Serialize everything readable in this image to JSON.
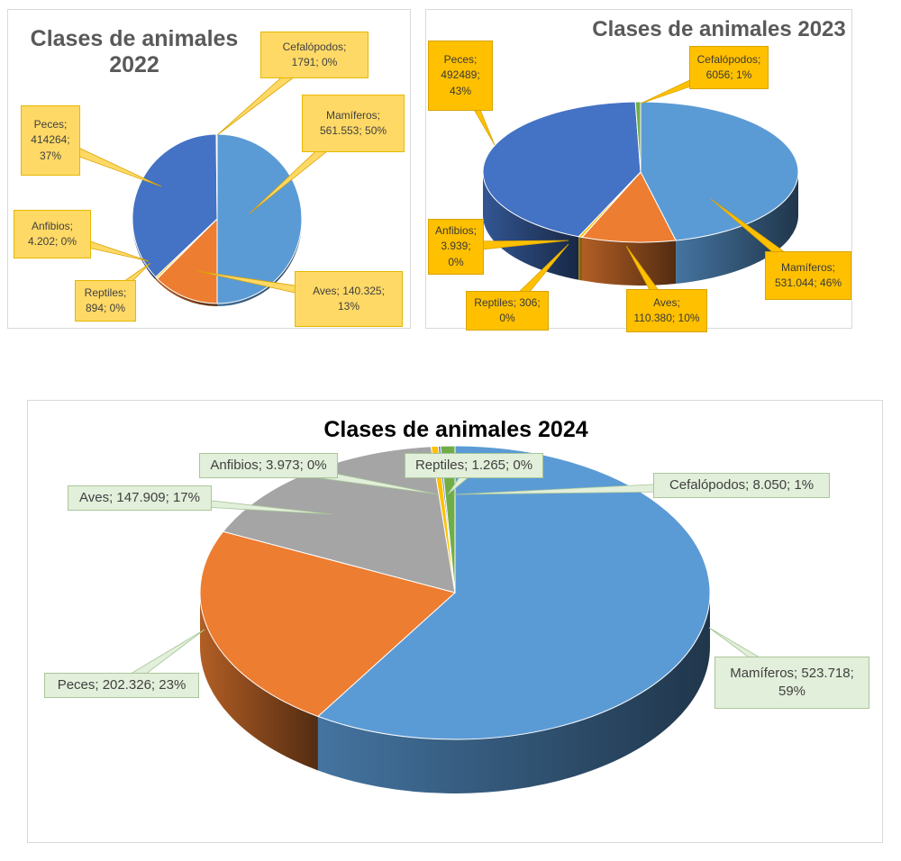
{
  "chart_data": [
    {
      "type": "pie",
      "title": "Clases de animales 2022",
      "categories": [
        "Mamíferos",
        "Aves",
        "Reptiles",
        "Anfibios",
        "Peces",
        "Cefalópodos"
      ],
      "values": [
        561553,
        140325,
        894,
        4202,
        414264,
        1791
      ],
      "percents": [
        50,
        13,
        0,
        0,
        37,
        0
      ],
      "colors": [
        "#5b9bd5",
        "#ed7d31",
        "#a5a5a5",
        "#ffc000",
        "#4472c4",
        "#70ad47"
      ],
      "labels": [
        {
          "id": "mamiferos",
          "lines": [
            "Mamíferos;",
            "561.553; 50%"
          ]
        },
        {
          "id": "aves",
          "lines": [
            "Aves; 140.325;",
            "13%"
          ]
        },
        {
          "id": "reptiles",
          "lines": [
            "Reptiles;",
            "894; 0%"
          ]
        },
        {
          "id": "anfibios",
          "lines": [
            "Anfibios;",
            "4.202; 0%"
          ]
        },
        {
          "id": "peces",
          "lines": [
            "Peces;",
            "414264;",
            "37%"
          ]
        },
        {
          "id": "cefalopodos",
          "lines": [
            "Cefalópodos;",
            "1791; 0%"
          ]
        }
      ]
    },
    {
      "type": "pie",
      "title": "Clases de animales 2023",
      "categories": [
        "Mamíferos",
        "Aves",
        "Reptiles",
        "Anfibios",
        "Peces",
        "Cefalópodos"
      ],
      "values": [
        531044,
        110380,
        306,
        3939,
        492489,
        6056
      ],
      "percents": [
        46,
        10,
        0,
        0,
        43,
        1
      ],
      "colors": [
        "#5b9bd5",
        "#ed7d31",
        "#a5a5a5",
        "#ffc000",
        "#4472c4",
        "#70ad47"
      ],
      "labels": [
        {
          "id": "mamiferos",
          "lines": [
            "Mamíferos;",
            "531.044; 46%"
          ]
        },
        {
          "id": "aves",
          "lines": [
            "Aves;",
            "110.380; 10%"
          ]
        },
        {
          "id": "reptiles",
          "lines": [
            "Reptiles; 306;",
            "0%"
          ]
        },
        {
          "id": "anfibios",
          "lines": [
            "Anfibios;",
            "3.939;",
            "0%"
          ]
        },
        {
          "id": "peces",
          "lines": [
            "Peces;",
            "492489;",
            "43%"
          ]
        },
        {
          "id": "cefalopodos",
          "lines": [
            "Cefalópodos;",
            "6056; 1%"
          ]
        }
      ]
    },
    {
      "type": "pie",
      "title": "Clases de animales 2024",
      "categories": [
        "Mamíferos",
        "Peces",
        "Aves",
        "Anfibios",
        "Reptiles",
        "Cefalópodos"
      ],
      "values": [
        523718,
        202326,
        147909,
        3973,
        1265,
        8050
      ],
      "percents": [
        59,
        23,
        17,
        0,
        0,
        1
      ],
      "colors": [
        "#5b9bd5",
        "#ed7d31",
        "#a5a5a5",
        "#ffc000",
        "#4472c4",
        "#70ad47"
      ],
      "labels": [
        {
          "id": "mamiferos",
          "lines": [
            "Mamíferos; 523.718;",
            "59%"
          ]
        },
        {
          "id": "peces",
          "lines": [
            "Peces; 202.326; 23%"
          ]
        },
        {
          "id": "aves",
          "lines": [
            "Aves; 147.909; 17%"
          ]
        },
        {
          "id": "anfibios",
          "lines": [
            "Anfibios; 3.973; 0%"
          ]
        },
        {
          "id": "reptiles",
          "lines": [
            "Reptiles; 1.265; 0%"
          ]
        },
        {
          "id": "cefalopodos",
          "lines": [
            "Cefalópodos; 8.050; 1%"
          ]
        }
      ]
    }
  ]
}
